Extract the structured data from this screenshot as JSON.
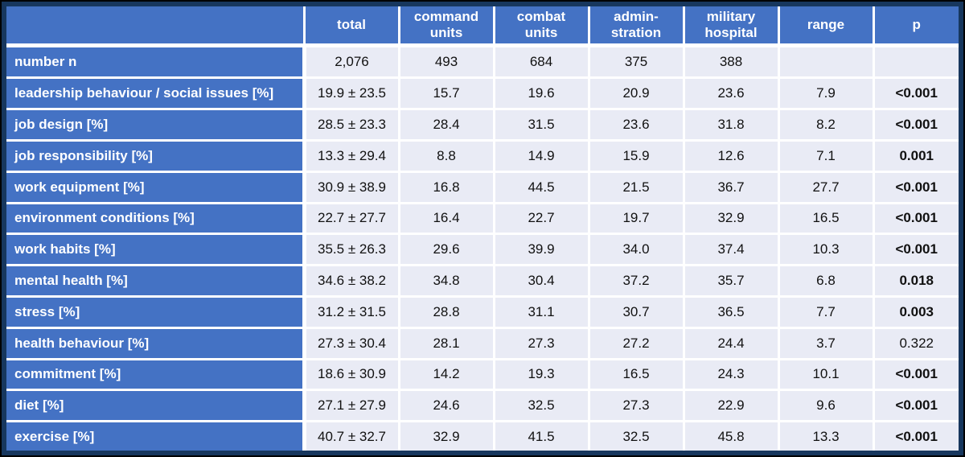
{
  "colors": {
    "accent_blue": "#4472C4",
    "frame_navy": "#17375E",
    "separator_white": "#FFFFFF",
    "cell_bg": "#E9EBF5",
    "data_text": "#111111"
  },
  "chart_data": {
    "type": "table",
    "columns": [
      "",
      "total",
      "command units",
      "combat units",
      "admin-stration",
      "military hospital",
      "range",
      "p"
    ],
    "columns_display": [
      "",
      "total",
      "command\nunits",
      "combat\nunits",
      "admin-\nstration",
      "military\nhospital",
      "range",
      "p"
    ],
    "rows": [
      {
        "label": "number n",
        "values": [
          "2,076",
          "493",
          "684",
          "375",
          "388",
          "",
          ""
        ],
        "p_bold": false
      },
      {
        "label": "leadership behaviour / social issues [%]",
        "values": [
          "19.9 ± 23.5",
          "15.7",
          "19.6",
          "20.9",
          "23.6",
          "7.9",
          "<0.001"
        ],
        "p_bold": true
      },
      {
        "label": "job design [%]",
        "values": [
          "28.5 ± 23.3",
          "28.4",
          "31.5",
          "23.6",
          "31.8",
          "8.2",
          "<0.001"
        ],
        "p_bold": true
      },
      {
        "label": "job responsibility [%]",
        "values": [
          "13.3 ± 29.4",
          "8.8",
          "14.9",
          "15.9",
          "12.6",
          "7.1",
          "0.001"
        ],
        "p_bold": true
      },
      {
        "label": "work equipment [%]",
        "values": [
          "30.9 ± 38.9",
          "16.8",
          "44.5",
          "21.5",
          "36.7",
          "27.7",
          "<0.001"
        ],
        "p_bold": true
      },
      {
        "label": "environment conditions [%]",
        "values": [
          "22.7 ± 27.7",
          "16.4",
          "22.7",
          "19.7",
          "32.9",
          "16.5",
          "<0.001"
        ],
        "p_bold": true
      },
      {
        "label": "work habits [%]",
        "values": [
          "35.5 ± 26.3",
          "29.6",
          "39.9",
          "34.0",
          "37.4",
          "10.3",
          "<0.001"
        ],
        "p_bold": true
      },
      {
        "label": "mental health [%]",
        "values": [
          "34.6 ± 38.2",
          "34.8",
          "30.4",
          "37.2",
          "35.7",
          "6.8",
          "0.018"
        ],
        "p_bold": true
      },
      {
        "label": "stress [%]",
        "values": [
          "31.2 ± 31.5",
          "28.8",
          "31.1",
          "30.7",
          "36.5",
          "7.7",
          "0.003"
        ],
        "p_bold": true
      },
      {
        "label": "health behaviour [%]",
        "values": [
          "27.3 ± 30.4",
          "28.1",
          "27.3",
          "27.2",
          "24.4",
          "3.7",
          "0.322"
        ],
        "p_bold": false
      },
      {
        "label": "commitment [%]",
        "values": [
          "18.6 ± 30.9",
          "14.2",
          "19.3",
          "16.5",
          "24.3",
          "10.1",
          "<0.001"
        ],
        "p_bold": true
      },
      {
        "label": "diet [%]",
        "values": [
          "27.1 ± 27.9",
          "24.6",
          "32.5",
          "27.3",
          "22.9",
          "9.6",
          "<0.001"
        ],
        "p_bold": true
      },
      {
        "label": "exercise [%]",
        "values": [
          "40.7 ± 32.7",
          "32.9",
          "41.5",
          "32.5",
          "45.8",
          "13.3",
          "<0.001"
        ],
        "p_bold": true
      }
    ]
  }
}
